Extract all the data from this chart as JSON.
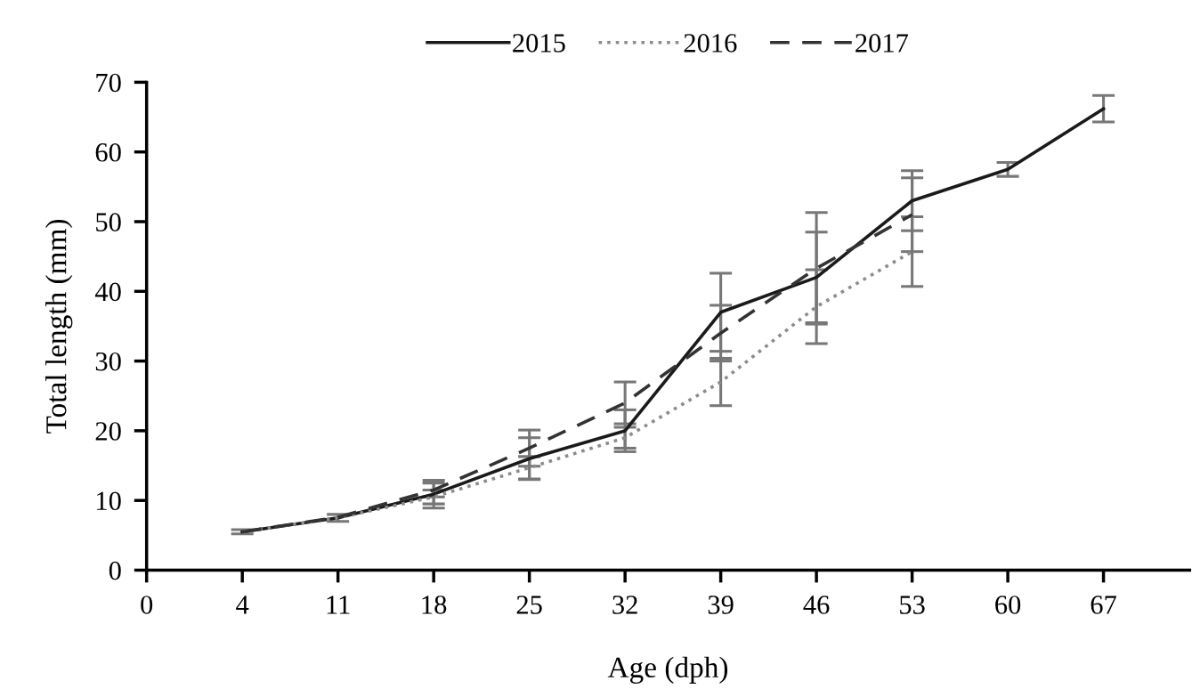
{
  "chart_data": {
    "type": "line",
    "xlabel": "Age (dph)",
    "ylabel": "Total length (mm)",
    "categories": [
      "0",
      "4",
      "11",
      "18",
      "25",
      "32",
      "39",
      "46",
      "53",
      "60",
      "67"
    ],
    "ylim": [
      0,
      70
    ],
    "yticks": [
      0,
      10,
      20,
      30,
      40,
      50,
      60,
      70
    ],
    "legend": "top",
    "grid": false,
    "marker": "none",
    "series": [
      {
        "name": "2015",
        "color": "#1a1a1a",
        "line_style": "solid",
        "values": [
          null,
          5.5,
          7.5,
          10.9,
          16,
          20,
          37,
          42,
          53,
          57.5,
          66.2
        ],
        "errors": [
          null,
          0.3,
          0.5,
          2,
          3,
          3,
          5.6,
          6.5,
          4.3,
          1,
          1.9
        ]
      },
      {
        "name": "2016",
        "color": "#8c8c8c",
        "line_style": "dotted",
        "values": [
          null,
          5.5,
          7.5,
          10.5,
          14.7,
          19,
          27,
          37.8,
          45.7,
          null,
          null
        ],
        "errors": [
          null,
          null,
          null,
          1,
          1.6,
          1.5,
          3.4,
          5.3,
          5,
          null,
          null
        ]
      },
      {
        "name": "2017",
        "color": "#333333",
        "line_style": "dashed",
        "values": [
          null,
          5.5,
          7.6,
          11.5,
          17.5,
          24,
          34,
          43.3,
          51,
          null,
          null
        ],
        "errors": [
          null,
          null,
          null,
          1,
          2.6,
          3,
          4,
          8,
          5.3,
          null,
          null
        ]
      }
    ]
  }
}
